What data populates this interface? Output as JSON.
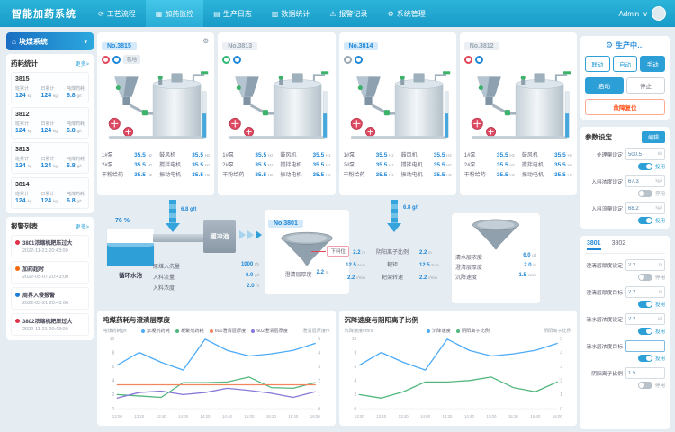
{
  "navbar": {
    "brand": "智能加药系统",
    "tabs": [
      {
        "label": "工艺流程",
        "icon": "process",
        "active": false
      },
      {
        "label": "加药监控",
        "icon": "monitor",
        "active": true
      },
      {
        "label": "生产日志",
        "icon": "log",
        "active": false
      },
      {
        "label": "数据统计",
        "icon": "stats",
        "active": false
      },
      {
        "label": "报警记录",
        "icon": "alarm",
        "active": false
      },
      {
        "label": "系统管理",
        "icon": "system",
        "active": false
      }
    ],
    "user": "Admin"
  },
  "sidebar": {
    "system_title": "块煤系统",
    "stats_section": {
      "title": "药耗统计",
      "more": "更多>",
      "cards": [
        {
          "id": "3815",
          "cols": [
            {
              "label": "班累计",
              "value": "124",
              "unit": "kg"
            },
            {
              "label": "日累计",
              "value": "124",
              "unit": "kg"
            },
            {
              "label": "吨煤药耗",
              "value": "6.8",
              "unit": "g/t"
            }
          ]
        },
        {
          "id": "3812",
          "cols": [
            {
              "label": "班累计",
              "value": "124",
              "unit": "kg"
            },
            {
              "label": "日累计",
              "value": "124",
              "unit": "kg"
            },
            {
              "label": "吨煤药耗",
              "value": "6.8",
              "unit": "g/t"
            }
          ]
        },
        {
          "id": "3813",
          "cols": [
            {
              "label": "班累计",
              "value": "124",
              "unit": "kg"
            },
            {
              "label": "日累计",
              "value": "124",
              "unit": "kg"
            },
            {
              "label": "吨煤药耗",
              "value": "6.8",
              "unit": "g/t"
            }
          ]
        },
        {
          "id": "3814",
          "cols": [
            {
              "label": "班累计",
              "value": "124",
              "unit": "kg"
            },
            {
              "label": "日累计",
              "value": "124",
              "unit": "kg"
            },
            {
              "label": "吨煤药耗",
              "value": "6.8",
              "unit": "g/t"
            }
          ]
        }
      ]
    },
    "alarm_section": {
      "title": "报警列表",
      "more": "更多>",
      "items": [
        {
          "color": "#e0314b",
          "text": "3801浓缩机耙压过大",
          "time": "2022-11-21  20:43:00"
        },
        {
          "color": "#f76707",
          "text": "加药超时",
          "time": "2022-05-07  20:43:00"
        },
        {
          "color": "#1c7ed6",
          "text": "周界入侵报警",
          "time": "2022-03-21  20:43:00"
        },
        {
          "color": "#e0314b",
          "text": "3802浓缩机耙压过大",
          "time": "2022-11-21  20:43:00"
        }
      ]
    }
  },
  "tanks": [
    {
      "id": "No.3815",
      "badge_active": true,
      "mode_tag": "就地",
      "has_gear": true,
      "icon_colors": [
        "#e0455a",
        "#2188d8"
      ],
      "stats": [
        {
          "label": "1#泵",
          "value": "35.5",
          "unit": "Hz"
        },
        {
          "label": "鼓风机",
          "value": "35.5",
          "unit": "Hz"
        },
        {
          "label": "2#泵",
          "value": "35.5",
          "unit": "Hz"
        },
        {
          "label": "搅拌电机",
          "value": "35.5",
          "unit": "Hz"
        },
        {
          "label": "干粉给药",
          "value": "35.5",
          "unit": "Hz"
        },
        {
          "label": "振动电机",
          "value": "35.5",
          "unit": "Hz"
        }
      ]
    },
    {
      "id": "No.3813",
      "badge_active": false,
      "mode_tag": "",
      "has_gear": false,
      "icon_colors": [
        "#2eb872",
        "#2188d8"
      ],
      "stats": [
        {
          "label": "1#泵",
          "value": "35.5",
          "unit": "Hz"
        },
        {
          "label": "鼓风机",
          "value": "35.5",
          "unit": "Hz"
        },
        {
          "label": "2#泵",
          "value": "35.5",
          "unit": "Hz"
        },
        {
          "label": "搅拌电机",
          "value": "35.5",
          "unit": "Hz"
        },
        {
          "label": "干粉给药",
          "value": "35.5",
          "unit": "Hz"
        },
        {
          "label": "振动电机",
          "value": "35.5",
          "unit": "Hz"
        }
      ]
    },
    {
      "id": "No.3814",
      "badge_active": true,
      "mode_tag": "",
      "has_gear": false,
      "icon_colors": [
        "#9aa6b2",
        "#2188d8"
      ],
      "stats": [
        {
          "label": "1#泵",
          "value": "35.5",
          "unit": "Hz"
        },
        {
          "label": "鼓风机",
          "value": "35.5",
          "unit": "Hz"
        },
        {
          "label": "2#泵",
          "value": "35.5",
          "unit": "Hz"
        },
        {
          "label": "搅拌电机",
          "value": "35.5",
          "unit": "Hz"
        },
        {
          "label": "干粉给药",
          "value": "35.5",
          "unit": "Hz"
        },
        {
          "label": "振动电机",
          "value": "35.5",
          "unit": "Hz"
        }
      ]
    },
    {
      "id": "No.3812",
      "badge_active": false,
      "mode_tag": "",
      "has_gear": false,
      "icon_colors": [
        "#e0455a",
        "#2188d8"
      ],
      "stats": [
        {
          "label": "1#泵",
          "value": "35.5",
          "unit": "Hz"
        },
        {
          "label": "鼓风机",
          "value": "35.5",
          "unit": "Hz"
        },
        {
          "label": "2#泵",
          "value": "35.5",
          "unit": "Hz"
        },
        {
          "label": "搅拌电机",
          "value": "35.5",
          "unit": "Hz"
        },
        {
          "label": "干粉给药",
          "value": "35.5",
          "unit": "Hz"
        },
        {
          "label": "振动电机",
          "value": "35.5",
          "unit": "Hz"
        }
      ]
    }
  ],
  "flow": {
    "pool": {
      "percent": "76 %",
      "label": "循环水池"
    },
    "dose_left": "6.8 g/t",
    "dose_right": "6.8 g/t",
    "buffer_label": "缓冲池",
    "feed_stats": [
      {
        "label": "原煤入洗量",
        "value": "1000",
        "unit": "t/h"
      },
      {
        "label": "入料流量",
        "value": "6.0",
        "unit": "g/t"
      },
      {
        "label": "入料浓度",
        "value": "2.0",
        "unit": "m"
      }
    ],
    "thickener1": {
      "id": "No.3801",
      "tag": "下料位",
      "stat": {
        "label": "澄清层厚度",
        "value": "2.2",
        "unit": "m"
      }
    },
    "mid_stats": {
      "labels": [
        "阴阳离子比例",
        "耙矩",
        "耙架转速"
      ],
      "left": [
        {
          "value": "2.2",
          "unit": "m"
        },
        {
          "value": "12.5",
          "unit": "N·m"
        },
        {
          "value": "2.2",
          "unit": "r/min"
        }
      ],
      "right": [
        {
          "value": "2.2",
          "unit": "m"
        },
        {
          "value": "12.5",
          "unit": "N·m"
        },
        {
          "value": "2.2",
          "unit": "r/min"
        }
      ]
    },
    "thickener2": {
      "stats": [
        {
          "label": "清水层浓度",
          "value": "6.0",
          "unit": "g/l"
        },
        {
          "label": "澄清层厚度",
          "value": "2.0",
          "unit": "m"
        },
        {
          "label": "沉降速度",
          "value": "1.5",
          "unit": "cm/s"
        }
      ]
    }
  },
  "control": {
    "status": "生产中…",
    "mode_buttons": [
      {
        "label": "联动",
        "active": false
      },
      {
        "label": "自动",
        "active": false
      },
      {
        "label": "手动",
        "active": true
      }
    ],
    "start": "启动",
    "stop": "停止",
    "reset": "故障复位"
  },
  "params": {
    "title": "参数设定",
    "edit": "编辑",
    "fields": [
      {
        "label": "处理量设定",
        "value": "500.5",
        "unit": "t/h",
        "toggle": true,
        "toggle_label": "投用"
      },
      {
        "label": "入料浓度设定",
        "value": "67.3",
        "unit": "kg/l",
        "toggle": false,
        "toggle_label": "停用"
      },
      {
        "label": "入料流量设定",
        "value": "68.2",
        "unit": "kg/l",
        "toggle": true,
        "toggle_label": "投用"
      }
    ]
  },
  "thickener_panel": {
    "tabs": [
      {
        "label": "3801",
        "active": true
      },
      {
        "label": "3802",
        "active": false
      }
    ],
    "fields": [
      {
        "label": "澄清层厚度设定",
        "value": "2.2",
        "unit": "m",
        "toggle": false,
        "toggle_label": "停用"
      },
      {
        "label": "澄清层厚度目标",
        "value": "2.2",
        "unit": "m",
        "toggle": true,
        "toggle_label": "投用"
      },
      {
        "label": "清水层浓度设定",
        "value": "2.2",
        "unit": "g/l",
        "toggle": true,
        "toggle_label": "投用"
      },
      {
        "label": "清水层浓度目标",
        "value": "",
        "unit": "",
        "toggle": true,
        "toggle_label": "投用"
      },
      {
        "label": "阴阳离子比例",
        "value": "1.5",
        "unit": "",
        "toggle": false,
        "toggle_label": "停用"
      }
    ]
  },
  "chart_data": [
    {
      "type": "line",
      "title": "吨煤药耗与澄清层厚度",
      "ylabel_left": "吨煤药耗g/t",
      "ylabel_right": "澄清层厚度m",
      "ylim_left": [
        0,
        10
      ],
      "ylim_right": [
        0,
        5
      ],
      "x": [
        "13:00",
        "13:20",
        "13:40",
        "14:00",
        "14:20",
        "14:40",
        "15:00",
        "15:20",
        "15:40",
        "16:00"
      ],
      "series": [
        {
          "name": "絮凝剂药耗",
          "color": "#4dabf7",
          "axis": "left",
          "values": [
            6.2,
            8.0,
            6.6,
            5.5,
            9.9,
            8.3,
            7.5,
            7.8,
            8.3,
            9.3
          ]
        },
        {
          "name": "凝聚剂药耗",
          "color": "#51b77d",
          "axis": "left",
          "values": [
            2.0,
            1.8,
            1.6,
            3.7,
            3.7,
            3.8,
            4.5,
            3.0,
            2.9,
            3.7
          ]
        },
        {
          "name": "601澄清层厚度",
          "color": "#f4845f",
          "axis": "right",
          "values": [
            1.7,
            1.7,
            1.7,
            1.7,
            1.7,
            1.7,
            1.7,
            1.7,
            1.7,
            1.7
          ]
        },
        {
          "name": "602澄清层厚度",
          "color": "#8778d7",
          "axis": "right",
          "values": [
            0.75,
            1.15,
            1.25,
            1.0,
            1.15,
            1.45,
            1.3,
            1.1,
            0.8,
            1.2
          ]
        }
      ]
    },
    {
      "type": "line",
      "title": "沉降速度与阴阳离子比例",
      "ylabel_left": "沉降速度cm/s",
      "ylabel_right": "阴阳离子比例",
      "ylim_left": [
        0,
        10
      ],
      "ylim_right": [
        0,
        5
      ],
      "x": [
        "13:00",
        "13:20",
        "13:40",
        "14:00",
        "14:20",
        "14:40",
        "15:00",
        "15:20",
        "15:40",
        "16:00"
      ],
      "series": [
        {
          "name": "沉降速度",
          "color": "#4dabf7",
          "axis": "left",
          "values": [
            6.2,
            8.0,
            6.6,
            5.5,
            9.9,
            8.3,
            7.5,
            7.8,
            8.3,
            9.3
          ]
        },
        {
          "name": "阴阳离子比例",
          "color": "#51b77d",
          "axis": "right",
          "values": [
            1.0,
            0.75,
            1.2,
            1.9,
            1.9,
            2.0,
            2.25,
            1.5,
            1.2,
            1.9
          ]
        }
      ]
    }
  ]
}
